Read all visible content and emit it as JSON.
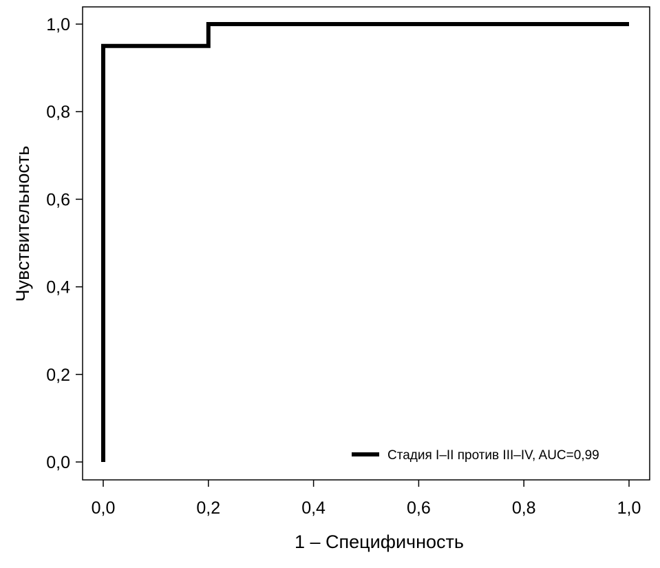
{
  "chart_data": {
    "type": "line",
    "title": "",
    "xlabel": "1 – Специфичность",
    "ylabel": "Чувствительность",
    "xlim": [
      0.0,
      1.0
    ],
    "ylim": [
      0.0,
      1.0
    ],
    "x_ticks": [
      0.0,
      0.2,
      0.4,
      0.6,
      0.8,
      1.0
    ],
    "y_ticks": [
      0.0,
      0.2,
      0.4,
      0.6,
      0.8,
      1.0
    ],
    "x_tick_labels": [
      "0,0",
      "0,2",
      "0,4",
      "0,6",
      "0,8",
      "1,0"
    ],
    "y_tick_labels": [
      "0,0",
      "0,2",
      "0,4",
      "0,6",
      "0,8",
      "1,0"
    ],
    "grid": false,
    "legend_position": "bottom-right",
    "series": [
      {
        "name": "Стадия I–II против III–IV, AUC=0,99",
        "color": "#000000",
        "step": true,
        "x": [
          0.0,
          0.0,
          0.2,
          0.2,
          1.0
        ],
        "y": [
          0.0,
          0.95,
          0.95,
          1.0,
          1.0
        ]
      }
    ]
  }
}
